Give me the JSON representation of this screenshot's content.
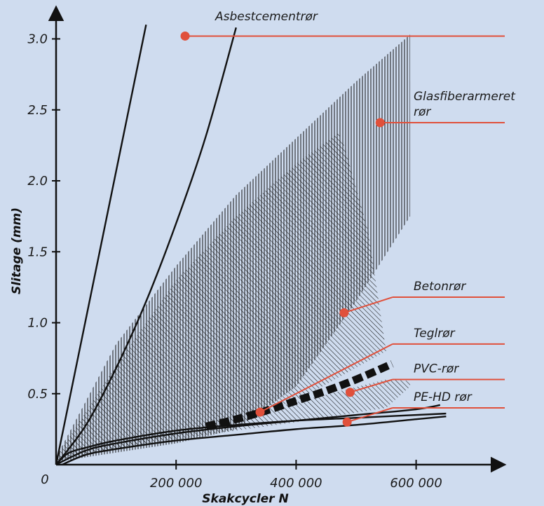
{
  "colors": {
    "background": "#cfdcef",
    "ink": "#111111",
    "accent": "#e0503b"
  },
  "chart_data": {
    "type": "line",
    "title": "",
    "xlabel": "Skakcycler N",
    "ylabel": "Slitage (mm)",
    "xlim": [
      0,
      700000
    ],
    "ylim": [
      0,
      3.2
    ],
    "x_origin_label": "0",
    "x_ticks": [
      {
        "value": 200000,
        "label": "200 000"
      },
      {
        "value": 400000,
        "label": "400 000"
      },
      {
        "value": 600000,
        "label": "600 000"
      }
    ],
    "y_ticks": [
      {
        "value": 0.5,
        "label": "0.5"
      },
      {
        "value": 1.0,
        "label": "1.0"
      },
      {
        "value": 1.5,
        "label": "1.5"
      },
      {
        "value": 2.0,
        "label": "2.0"
      },
      {
        "value": 2.5,
        "label": "2.5"
      },
      {
        "value": 3.0,
        "label": "3.0"
      }
    ],
    "series": [
      {
        "name": "Asbestcementrør",
        "kind": "lines",
        "lines": [
          {
            "x": [
              0,
              150000
            ],
            "y": [
              0,
              3.1
            ]
          },
          {
            "x": [
              0,
              50000,
              100000,
              150000,
              200000,
              250000,
              300000
            ],
            "y": [
              0,
              0.28,
              0.68,
              1.15,
              1.7,
              2.32,
              3.08
            ]
          }
        ],
        "marker": {
          "x": 215000,
          "y": 3.02
        },
        "label_lines": [
          "Asbestcementrør"
        ],
        "legend_y": 3.02
      },
      {
        "name": "Glasfiberarmeret rør",
        "kind": "band",
        "hatch": "vertical",
        "upper": {
          "x": [
            0,
            100000,
            200000,
            300000,
            400000,
            500000,
            590000
          ],
          "y": [
            0.05,
            0.85,
            1.4,
            1.9,
            2.3,
            2.7,
            3.03
          ]
        },
        "lower": {
          "x": [
            0,
            200000,
            300000,
            400000,
            500000,
            590000
          ],
          "y": [
            0.02,
            0.15,
            0.25,
            0.55,
            1.15,
            1.75
          ]
        },
        "marker": {
          "x": 540000,
          "y": 2.41
        },
        "label_lines": [
          "Glasfiberarmeret",
          "rør"
        ],
        "legend_y": 2.41
      },
      {
        "name": "Betonrør",
        "kind": "band",
        "hatch": "diagonal",
        "upper": {
          "x": [
            0,
            100000,
            200000,
            300000,
            400000,
            470000,
            480000,
            520000,
            550000
          ],
          "y": [
            0.05,
            0.7,
            1.3,
            1.75,
            2.12,
            2.34,
            2.25,
            1.65,
            0.8
          ]
        },
        "lower": {
          "x": [
            0,
            200000,
            400000,
            550000
          ],
          "y": [
            0.03,
            0.2,
            0.45,
            0.8
          ]
        },
        "marker": {
          "x": 480000,
          "y": 1.07
        },
        "label_lines": [
          "Betonrør"
        ],
        "legend_y": 1.18
      },
      {
        "name": "Teglrør",
        "kind": "dashed",
        "x": [
          250000,
          300000,
          350000,
          400000,
          450000,
          500000,
          560000
        ],
        "y": [
          0.27,
          0.32,
          0.38,
          0.45,
          0.52,
          0.6,
          0.71
        ],
        "marker": {
          "x": 340000,
          "y": 0.37
        },
        "label_lines": [
          "Teglrør"
        ],
        "legend_y": 0.85
      },
      {
        "name": "PVC-rør",
        "kind": "band",
        "hatch": "diagonal",
        "upper": {
          "x": [
            0,
            200000,
            400000,
            550000,
            590000
          ],
          "y": [
            0.05,
            0.24,
            0.44,
            0.6,
            0.59
          ]
        },
        "lower": {
          "x": [
            0,
            200000,
            400000,
            550000,
            590000
          ],
          "y": [
            0.03,
            0.18,
            0.3,
            0.4,
            0.55
          ]
        },
        "marker": {
          "x": 490000,
          "y": 0.51
        },
        "label_lines": [
          "PVC-rør"
        ],
        "legend_y": 0.6
      },
      {
        "name": "PE-HD rør",
        "kind": "lines",
        "lines": [
          {
            "x": [
              0,
              20000,
              50000,
              100000,
              200000,
              300000,
              400000,
              500000,
              650000
            ],
            "y": [
              0,
              0.08,
              0.12,
              0.17,
              0.24,
              0.28,
              0.31,
              0.33,
              0.36
            ]
          },
          {
            "x": [
              0,
              50000,
              100000,
              200000,
              300000,
              400000,
              500000,
              600000,
              640000
            ],
            "y": [
              0,
              0.1,
              0.15,
              0.22,
              0.27,
              0.31,
              0.35,
              0.39,
              0.42
            ]
          },
          {
            "x": [
              10000,
              50000,
              100000,
              200000,
              300000,
              400000,
              500000,
              600000,
              650000
            ],
            "y": [
              0,
              0.07,
              0.11,
              0.17,
              0.21,
              0.25,
              0.28,
              0.32,
              0.34
            ]
          }
        ],
        "marker": {
          "x": 485000,
          "y": 0.3
        },
        "label_lines": [
          "PE-HD rør"
        ],
        "legend_y": 0.4
      }
    ]
  }
}
